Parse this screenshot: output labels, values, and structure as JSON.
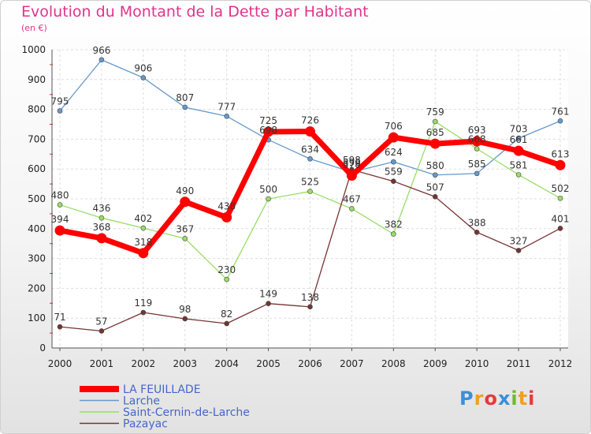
{
  "title": "Evolution du Montant de la Dette par Habitant",
  "unit": "(en €)",
  "logo": {
    "letters": [
      "P",
      "r",
      "o",
      "x",
      "i",
      "t",
      "i"
    ],
    "colors": [
      "#3a8fd8",
      "#f0a020",
      "#e63a3a",
      "#3a8fd8",
      "#70b830",
      "#f0a020",
      "#e63a3a"
    ]
  },
  "chart_data": {
    "type": "line",
    "title": "Evolution du Montant de la Dette par Habitant",
    "xlabel": "",
    "ylabel": "(en €)",
    "x": [
      "2000",
      "2001",
      "2002",
      "2003",
      "2004",
      "2005",
      "2006",
      "2007",
      "2008",
      "2009",
      "2010",
      "2011",
      "2012"
    ],
    "ylim": [
      0,
      1000
    ],
    "yticks": [
      0,
      100,
      200,
      300,
      400,
      500,
      600,
      700,
      800,
      900,
      1000
    ],
    "grid": true,
    "legend": "bottom-left",
    "series": [
      {
        "name": "LA FEUILLADE",
        "color": "#ff0000",
        "values": [
          394,
          368,
          318,
          490,
          438,
          725,
          726,
          578,
          706,
          685,
          693,
          661,
          613
        ]
      },
      {
        "name": "Larche",
        "color": "#6699cc",
        "values": [
          795,
          966,
          906,
          807,
          777,
          698,
          634,
          590,
          624,
          580,
          585,
          703,
          761
        ]
      },
      {
        "name": "Saint-Cernin-de-Larche",
        "color": "#99dd66",
        "values": [
          480,
          436,
          402,
          367,
          230,
          500,
          525,
          467,
          382,
          759,
          668,
          581,
          502
        ]
      },
      {
        "name": "Pazayac",
        "color": "#773333",
        "values": [
          71,
          57,
          119,
          98,
          82,
          149,
          138,
          598,
          559,
          507,
          388,
          327,
          401
        ]
      }
    ]
  }
}
